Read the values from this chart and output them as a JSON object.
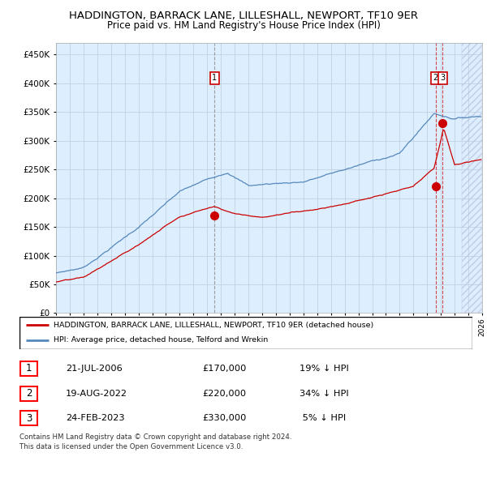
{
  "title": "HADDINGTON, BARRACK LANE, LILLESHALL, NEWPORT, TF10 9ER",
  "subtitle": "Price paid vs. HM Land Registry's House Price Index (HPI)",
  "legend_label_red": "HADDINGTON, BARRACK LANE, LILLESHALL, NEWPORT, TF10 9ER (detached house)",
  "legend_label_blue": "HPI: Average price, detached house, Telford and Wrekin",
  "footer": "Contains HM Land Registry data © Crown copyright and database right 2024.\nThis data is licensed under the Open Government Licence v3.0.",
  "transactions": [
    {
      "num": "1",
      "date": "21-JUL-2006",
      "price": "£170,000",
      "hpi_diff": "19% ↓ HPI"
    },
    {
      "num": "2",
      "date": "19-AUG-2022",
      "price": "£220,000",
      "hpi_diff": "34% ↓ HPI"
    },
    {
      "num": "3",
      "date": "24-FEB-2023",
      "price": "£330,000",
      "hpi_diff": " 5% ↓ HPI"
    }
  ],
  "ylim": [
    0,
    470000
  ],
  "yticks": [
    0,
    50000,
    100000,
    150000,
    200000,
    250000,
    300000,
    350000,
    400000,
    450000
  ],
  "x_start_year": 1995,
  "x_end_year": 2026,
  "background_color": "#ffffff",
  "chart_bg_color": "#ddeeff",
  "grid_color": "#bbccdd",
  "red_color": "#cc0000",
  "blue_color": "#5588bb"
}
